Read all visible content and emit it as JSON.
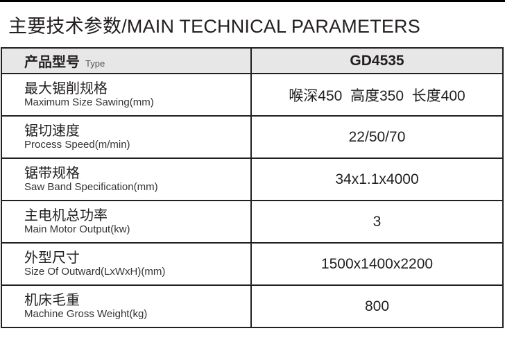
{
  "title": "主要技术参数/MAIN TECHNICAL PARAMETERS",
  "header": {
    "label_zh": "产品型号",
    "label_en": "Type",
    "model": "GD4535"
  },
  "rows": [
    {
      "zh": "最大锯削规格",
      "en": "Maximum Size Sawing(mm)",
      "value": "喉深450  高度350  长度400"
    },
    {
      "zh": "锯切速度",
      "en": "Process Speed(m/min)",
      "value": "22/50/70"
    },
    {
      "zh": "锯带规格",
      "en": "Saw Band Specification(mm)",
      "value": "34x1.1x4000"
    },
    {
      "zh": "主电机总功率",
      "en": "Main Motor Output(kw)",
      "value": "3"
    },
    {
      "zh": "外型尺寸",
      "en": "Size Of Outward(LxWxH)(mm)",
      "value": "1500x1400x2200"
    },
    {
      "zh": "机床毛重",
      "en": "Machine Gross Weight(kg)",
      "value": "800"
    }
  ]
}
